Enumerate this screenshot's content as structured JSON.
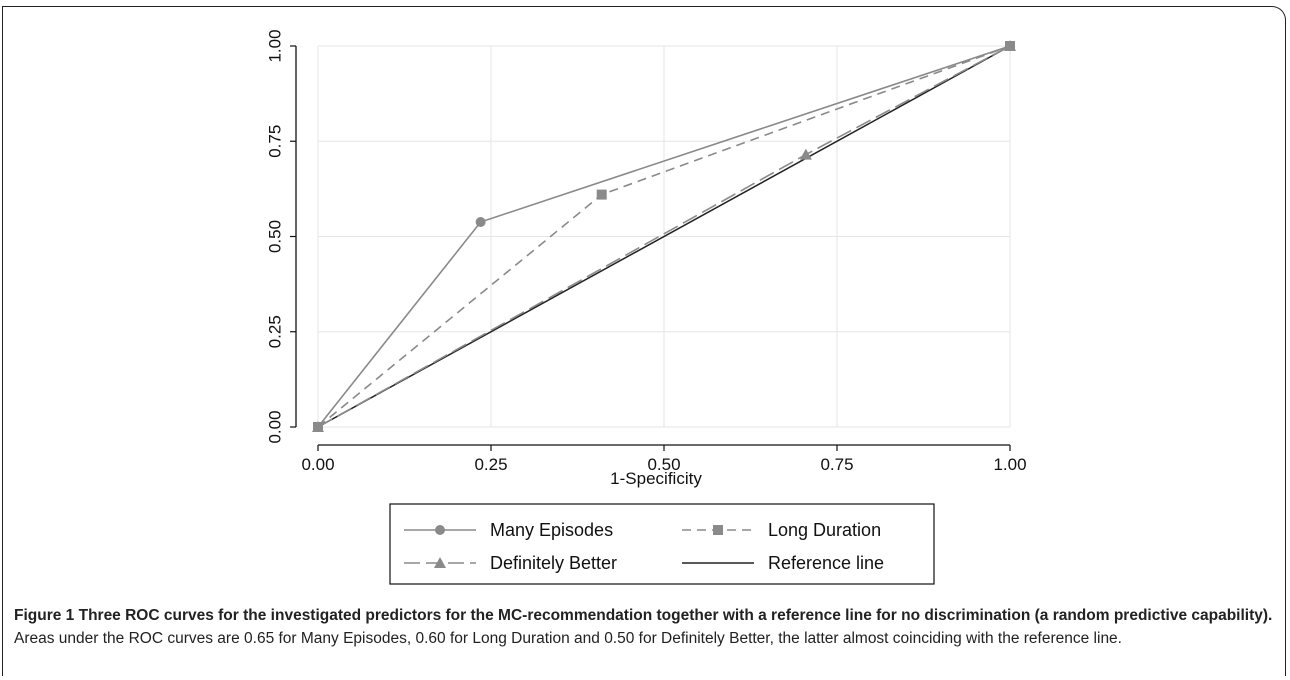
{
  "chart_data": {
    "type": "line",
    "xlabel": "1-Specificity",
    "ylabel": "",
    "xlim": [
      0,
      1
    ],
    "ylim": [
      0,
      1
    ],
    "x_ticks": [
      "0.00",
      "0.25",
      "0.50",
      "0.75",
      "1.00"
    ],
    "y_ticks": [
      "0.00",
      "0.25",
      "0.50",
      "0.75",
      "1.00"
    ],
    "grid": true,
    "legend_position": "bottom",
    "series": [
      {
        "name": "Many Episodes",
        "marker": "circle",
        "dash": "solid",
        "color": "#8a8a8a",
        "points": [
          [
            0,
            0
          ],
          [
            0.235,
            0.538
          ],
          [
            1,
            1
          ]
        ]
      },
      {
        "name": "Long Duration",
        "marker": "square",
        "dash": "dashed",
        "color": "#8a8a8a",
        "points": [
          [
            0,
            0
          ],
          [
            0.41,
            0.61
          ],
          [
            1,
            1
          ]
        ]
      },
      {
        "name": "Definitely Better",
        "marker": "triangle",
        "dash": "longdash",
        "color": "#8a8a8a",
        "points": [
          [
            0,
            0
          ],
          [
            0.705,
            0.715
          ],
          [
            1,
            1
          ]
        ]
      },
      {
        "name": "Reference line",
        "marker": "none",
        "dash": "solid",
        "color": "#222222",
        "points": [
          [
            0,
            0
          ],
          [
            1,
            1
          ]
        ]
      }
    ]
  },
  "caption": {
    "bold": "Figure 1 Three ROC curves for the investigated predictors for the MC-recommendation together with a reference line for no discrimination (a random predictive capability).",
    "text": " Areas under the ROC curves are 0.65 for Many Episodes, 0.60 for Long Duration and 0.50 for Definitely Better, the latter almost coinciding with the reference line."
  }
}
